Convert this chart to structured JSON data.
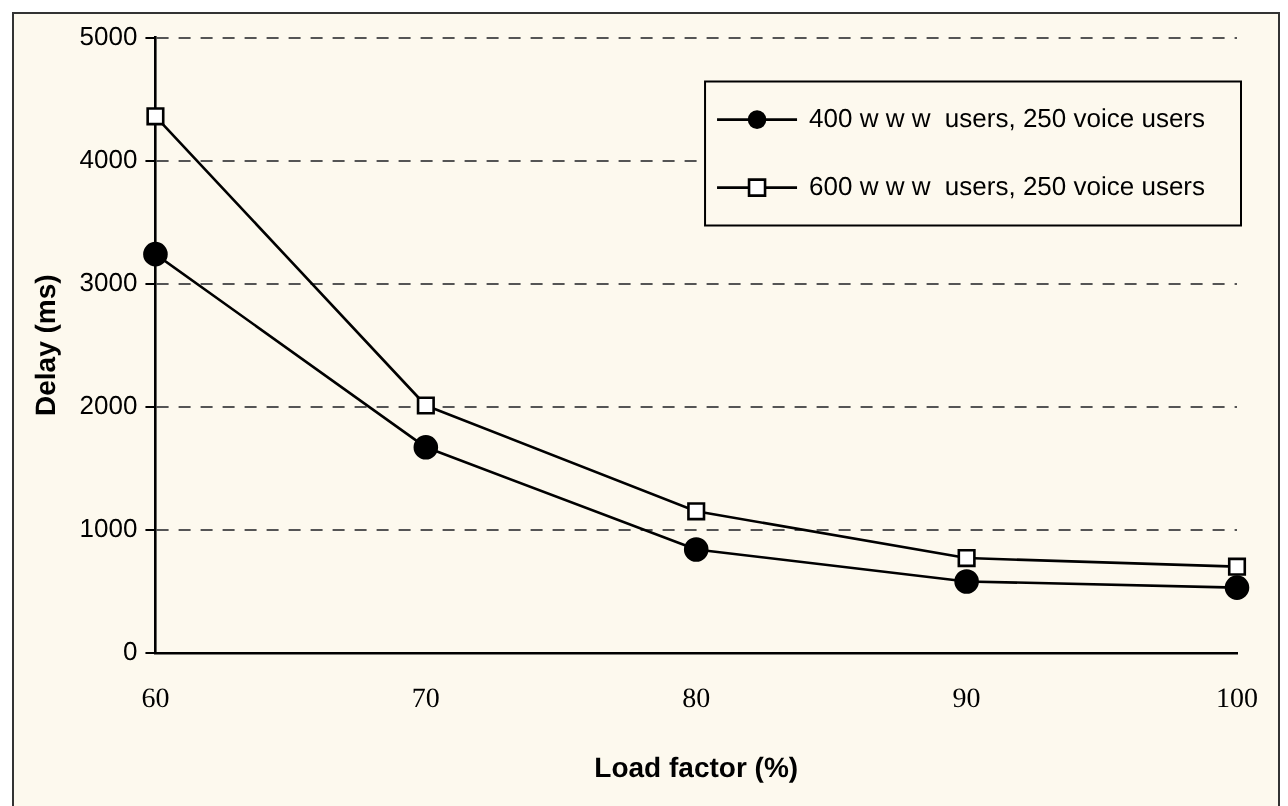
{
  "chart_data": {
    "type": "line",
    "xlabel": "Load factor (%)",
    "ylabel": "Delay (ms)",
    "x": [
      60,
      70,
      80,
      90,
      100
    ],
    "xlim": [
      60,
      100
    ],
    "xticks": [
      60,
      70,
      80,
      90,
      100
    ],
    "ylim": [
      0,
      5000
    ],
    "yticks": [
      0,
      1000,
      2000,
      3000,
      4000,
      5000
    ],
    "grid": "y",
    "legend": "top right",
    "line_style": "solid",
    "series": [
      {
        "name": "400 w w w  users, 250 voice users",
        "color": "#000000",
        "marker": "circle",
        "values": [
          3240,
          1670,
          840,
          580,
          530
        ]
      },
      {
        "name": "600 w w w  users, 250 voice users",
        "color": "#000000",
        "marker": "square",
        "values": [
          4360,
          2010,
          1150,
          770,
          700
        ]
      }
    ]
  }
}
